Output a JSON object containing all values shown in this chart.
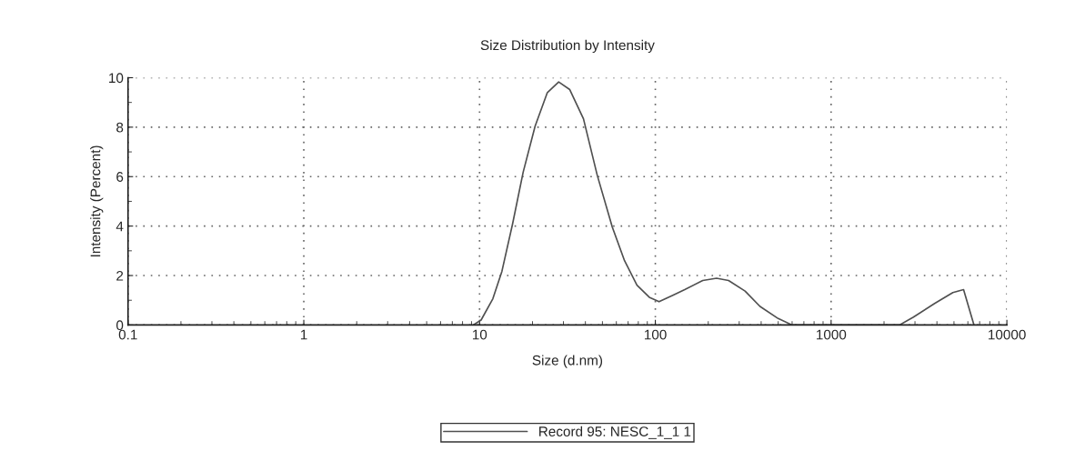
{
  "chart_data": {
    "type": "line",
    "title": "Size Distribution by Intensity",
    "xlabel": "Size (d.nm)",
    "ylabel": "Intensity (Percent)",
    "log": "x",
    "xlim": [
      0.1,
      10000
    ],
    "xticks": [
      0.1,
      1,
      10,
      100,
      1000,
      10000
    ],
    "ylim": [
      0,
      10
    ],
    "yticks": [
      0,
      2,
      4,
      6,
      8,
      10
    ],
    "grid": true,
    "legend": "bottom",
    "marker": "none",
    "line_style": "solid",
    "series": [
      {
        "name": "Record 95: NESC_1_1 1",
        "color": "#505050",
        "x": [
          9.2,
          10.2,
          11.9,
          13.4,
          15.4,
          17.7,
          20.7,
          24.3,
          28.2,
          32.6,
          39,
          46.7,
          56.9,
          66.8,
          78.6,
          92.4,
          105,
          125,
          147,
          186,
          223,
          261,
          324,
          394,
          500,
          600,
          2450,
          2940,
          3880,
          4930,
          5670,
          6500
        ],
        "values": [
          0,
          0.2,
          1.06,
          2.17,
          4.08,
          6.18,
          8.04,
          9.4,
          9.83,
          9.52,
          8.34,
          6.06,
          3.96,
          2.6,
          1.61,
          1.12,
          0.94,
          1.19,
          1.43,
          1.8,
          1.89,
          1.8,
          1.37,
          0.75,
          0.26,
          0,
          0,
          0.32,
          0.87,
          1.31,
          1.43,
          0
        ]
      }
    ]
  }
}
